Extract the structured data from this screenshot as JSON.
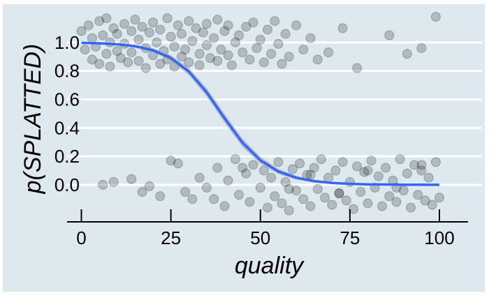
{
  "chart_data": {
    "type": "scatter",
    "xlabel": "quality",
    "ylabel": "p(SPLATTED)",
    "xlim": [
      -4,
      108
    ],
    "ylim": [
      -0.26,
      1.2
    ],
    "x_ticks": [
      0,
      25,
      50,
      75,
      100
    ],
    "x_tick_labels": [
      "0",
      "25",
      "50",
      "75",
      "100"
    ],
    "y_ticks": [
      0.0,
      0.2,
      0.4,
      0.6,
      0.8,
      1.0
    ],
    "y_tick_labels": [
      "0.0",
      "0.2",
      "0.4",
      "0.6",
      "0.8",
      "1.0"
    ],
    "grid": {
      "horizontal": true,
      "vertical": false
    },
    "legend": "none",
    "points_description_note": "jittered binary outcomes",
    "series": [
      {
        "kind": "jittered-points",
        "outcome": 1,
        "x": [
          0,
          1,
          2,
          3,
          3,
          4,
          5,
          5,
          6,
          7,
          7,
          8,
          8,
          9,
          10,
          10,
          11,
          12,
          12,
          13,
          14,
          14,
          15,
          16,
          16,
          17,
          18,
          18,
          19,
          20,
          20,
          21,
          22,
          22,
          23,
          24,
          24,
          25,
          26,
          26,
          27,
          28,
          28,
          29,
          30,
          30,
          31,
          32,
          33,
          33,
          34,
          35,
          35,
          36,
          37,
          38,
          38,
          39,
          40,
          41,
          41,
          42,
          43,
          44,
          45,
          46,
          47,
          48,
          49,
          50,
          51,
          52,
          53,
          54,
          55,
          56,
          57,
          58,
          60,
          62,
          64,
          66,
          69,
          73,
          77,
          86,
          91,
          95,
          99
        ],
        "y": [
          1.08,
          0.95,
          1.12,
          0.88,
          1.03,
          0.97,
          1.15,
          0.85,
          1.05,
          0.92,
          1.17,
          1.0,
          0.83,
          1.1,
          0.94,
          1.06,
          0.89,
          1.13,
          0.99,
          0.86,
          1.08,
          0.93,
          1.16,
          1.02,
          0.87,
          1.11,
          0.96,
          0.82,
          1.07,
          0.91,
          1.14,
          1.0,
          0.85,
          1.09,
          0.94,
          1.17,
          0.88,
          1.04,
          0.97,
          0.83,
          1.12,
          0.9,
          1.06,
          0.95,
          1.15,
          0.86,
          1.01,
          1.1,
          0.92,
          0.84,
          1.07,
          0.98,
          1.13,
          0.89,
          1.03,
          0.87,
          1.16,
          0.95,
          1.08,
          0.91,
          1.12,
          0.84,
          1.0,
          1.05,
          0.93,
          1.11,
          0.88,
          1.14,
          0.96,
          1.02,
          0.86,
          1.09,
          0.92,
          1.15,
          0.99,
          0.85,
          1.06,
          0.9,
          1.12,
          0.95,
          1.03,
          0.88,
          0.93,
          1.1,
          0.82,
          1.05,
          0.92,
          0.96,
          1.18
        ]
      },
      {
        "kind": "jittered-points",
        "outcome": 0,
        "x": [
          6,
          9,
          14,
          17,
          19,
          22,
          25,
          27,
          29,
          31,
          33,
          35,
          37,
          38,
          40,
          41,
          43,
          44,
          46,
          47,
          48,
          50,
          51,
          52,
          53,
          54,
          55,
          56,
          57,
          58,
          59,
          60,
          61,
          62,
          63,
          64,
          65,
          66,
          67,
          68,
          69,
          70,
          71,
          72,
          73,
          74,
          75,
          76,
          77,
          78,
          79,
          80,
          81,
          82,
          83,
          84,
          85,
          86,
          87,
          88,
          89,
          90,
          91,
          92,
          93,
          94,
          95,
          96,
          97,
          98,
          99,
          100,
          45,
          58,
          64,
          72,
          80,
          88,
          95
        ],
        "y": [
          0.0,
          0.02,
          0.04,
          -0.05,
          -0.01,
          -0.08,
          0.17,
          0.15,
          -0.05,
          -0.1,
          0.05,
          -0.02,
          -0.1,
          0.12,
          -0.15,
          0.03,
          0.18,
          -0.07,
          0.08,
          -0.12,
          0.14,
          -0.02,
          0.1,
          -0.16,
          0.05,
          -0.08,
          0.16,
          -0.13,
          0.02,
          -0.18,
          0.11,
          -0.04,
          0.15,
          -0.1,
          0.07,
          -0.15,
          0.12,
          -0.03,
          0.18,
          -0.09,
          0.05,
          -0.14,
          0.1,
          -0.06,
          0.16,
          -0.11,
          0.02,
          -0.17,
          0.13,
          -0.05,
          0.09,
          -0.13,
          0.17,
          -0.02,
          0.06,
          -0.15,
          0.12,
          -0.08,
          0.03,
          -0.12,
          0.18,
          -0.04,
          0.08,
          -0.16,
          0.14,
          -0.07,
          0.1,
          -0.11,
          0.05,
          -0.14,
          0.16,
          -0.09,
          0.12,
          -0.03,
          0.07,
          -0.06,
          0.1,
          -0.02,
          0.14
        ]
      },
      {
        "kind": "fit-line",
        "color": "#3366ff",
        "band_color": "#999999",
        "x": [
          0,
          5,
          10,
          15,
          20,
          25,
          30,
          35,
          40,
          45,
          50,
          55,
          60,
          65,
          70,
          75,
          80,
          85,
          90,
          95,
          100
        ],
        "y": [
          0.997,
          0.994,
          0.987,
          0.973,
          0.945,
          0.891,
          0.796,
          0.65,
          0.467,
          0.296,
          0.172,
          0.094,
          0.05,
          0.026,
          0.013,
          0.007,
          0.003,
          0.002,
          0.001,
          0.0005,
          0.0002
        ],
        "band_halfwidth": [
          0.003,
          0.004,
          0.006,
          0.009,
          0.013,
          0.019,
          0.025,
          0.03,
          0.032,
          0.03,
          0.025,
          0.019,
          0.013,
          0.009,
          0.006,
          0.004,
          0.003,
          0.002,
          0.002,
          0.002,
          0.002
        ]
      }
    ],
    "colors": {
      "background": "#ffffff",
      "panel": "#dde9ef",
      "grid": "#ffffff",
      "point_fill": "#000000",
      "line": "#3366ff",
      "ribbon": "#999999"
    }
  }
}
